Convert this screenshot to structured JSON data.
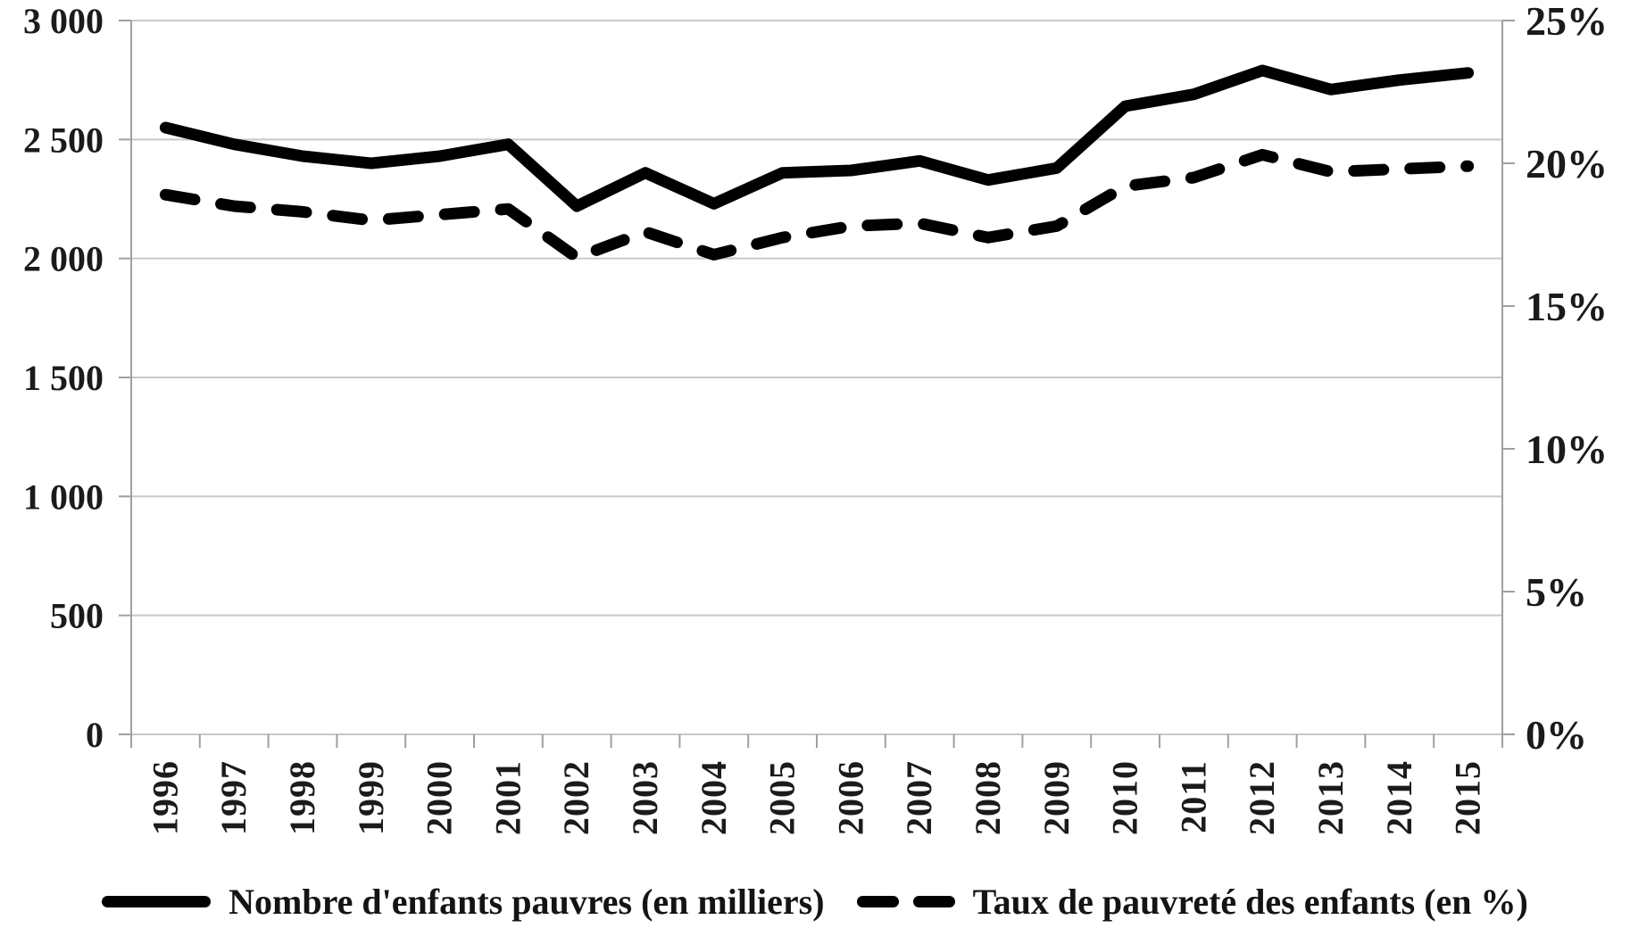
{
  "chart_data": {
    "type": "line",
    "title": "",
    "categories": [
      "1996",
      "1997",
      "1998",
      "1999",
      "2000",
      "2001",
      "2002",
      "2003",
      "2004",
      "2005",
      "2006",
      "2007",
      "2008",
      "2009",
      "2010",
      "2011",
      "2012",
      "2013",
      "2014",
      "2015"
    ],
    "series": [
      {
        "name": "Nombre d'enfants pauvres (en milliers)",
        "axis": "left",
        "line_style": "solid",
        "values": [
          2550,
          2480,
          2430,
          2400,
          2430,
          2480,
          2220,
          2360,
          2230,
          2360,
          2370,
          2410,
          2330,
          2380,
          2640,
          2690,
          2790,
          2710,
          2750,
          2780
        ]
      },
      {
        "name": "Taux de pauvreté des enfants (en %)",
        "axis": "right",
        "line_style": "dashed",
        "values": [
          18.9,
          18.5,
          18.3,
          18.0,
          18.2,
          18.4,
          16.7,
          17.6,
          16.8,
          17.4,
          17.8,
          17.9,
          17.4,
          17.8,
          19.2,
          19.5,
          20.3,
          19.7,
          19.8,
          19.9
        ]
      }
    ],
    "left_axis": {
      "min": 0,
      "max": 3000,
      "step": 500,
      "tick_labels": [
        "3 000",
        "2 500",
        "2 000",
        "1 500",
        "1 000",
        "500",
        "0"
      ]
    },
    "right_axis": {
      "min": 0,
      "max": 25,
      "step": 5,
      "tick_labels": [
        "25%",
        "20%",
        "15%",
        "10%",
        "5%",
        "0%"
      ]
    },
    "xlabel": "",
    "ylabel": "",
    "grid": true,
    "legend_position": "bottom",
    "series_color": "#000000",
    "grid_color": "#c8c8c8",
    "axis_color": "#a0a0a0",
    "text_color": "#1b1b1b",
    "background_color": "#ffffff"
  }
}
